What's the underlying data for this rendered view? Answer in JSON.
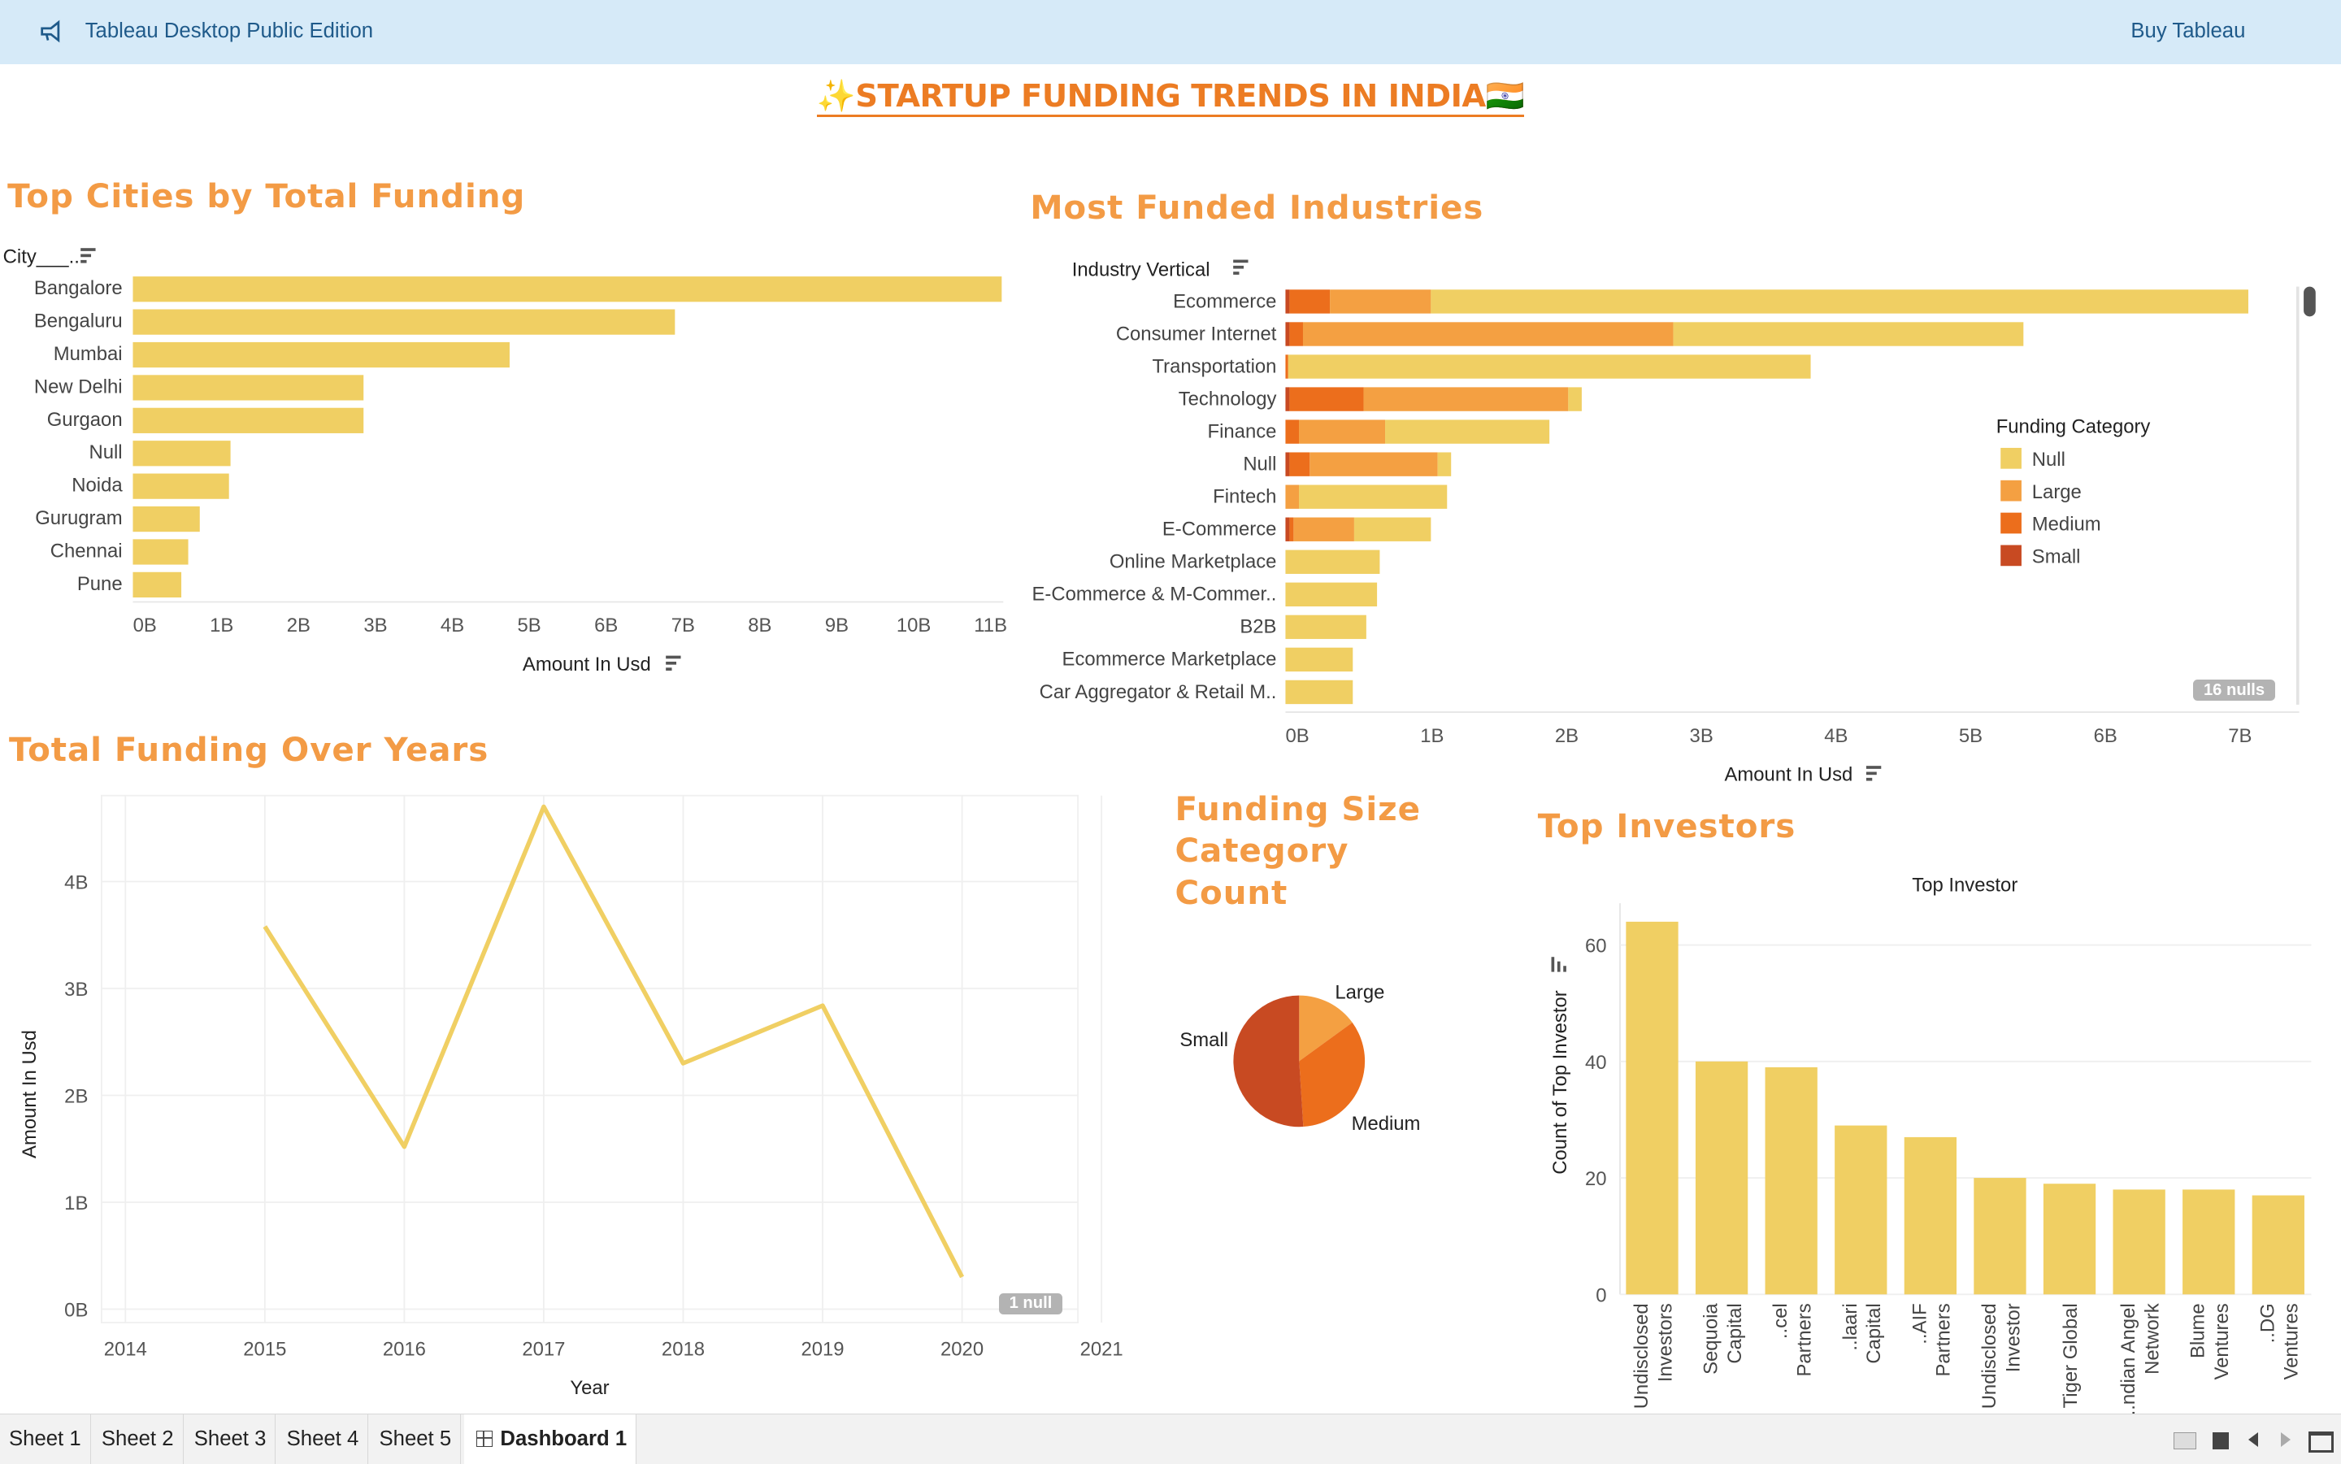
{
  "banner": {
    "product": "Tableau Desktop Public Edition",
    "buy_link": "Buy Tableau",
    "icon": "megaphone-icon"
  },
  "dashboard": {
    "title": "✨STARTUP FUNDING TRENDS IN INDIA🇮🇳",
    "accent_color": "#ec7c23",
    "title_color": "#f39b45",
    "bar_color": "#f0cf63"
  },
  "cities": {
    "title": "Top Cities by Total Funding",
    "field_header": "City___..",
    "x_axis_title": "Amount In Usd",
    "ticks": [
      "0B",
      "1B",
      "2B",
      "3B",
      "4B",
      "5B",
      "6B",
      "7B",
      "8B",
      "9B",
      "10B",
      "11B"
    ]
  },
  "industries": {
    "title": "Most Funded Industries",
    "field_header": "Industry Vertical",
    "x_axis_title": "Amount In Usd",
    "ticks": [
      "0B",
      "1B",
      "2B",
      "3B",
      "4B",
      "5B",
      "6B",
      "7B"
    ],
    "legend_title": "Funding Category",
    "legend": [
      {
        "label": "Null",
        "color": "#f0cf63"
      },
      {
        "label": "Large",
        "color": "#f4a042"
      },
      {
        "label": "Medium",
        "color": "#ec6e1c"
      },
      {
        "label": "Small",
        "color": "#c84a22"
      }
    ],
    "nulls_badge": "16 nulls"
  },
  "years": {
    "title": "Total Funding Over Years",
    "x_axis_title": "Year",
    "y_axis_title": "Amount In Usd",
    "x_ticks": [
      "2014",
      "2015",
      "2016",
      "2017",
      "2018",
      "2019",
      "2020",
      "2021"
    ],
    "y_ticks": [
      "0B",
      "1B",
      "2B",
      "3B",
      "4B"
    ],
    "null_badge": "1 null"
  },
  "pie": {
    "title_line1": "Funding Size",
    "title_line2": "Category",
    "title_line3": "Count",
    "labels": [
      "Large",
      "Medium",
      "Small"
    ]
  },
  "investors": {
    "title": "Top Investors",
    "chart_title": "Top Investor",
    "y_axis_title": "Count of Top Investor",
    "y_ticks": [
      "0",
      "20",
      "40",
      "60"
    ]
  },
  "tabs": [
    "Sheet 1",
    "Sheet 2",
    "Sheet 3",
    "Sheet 4",
    "Sheet 5",
    "Dashboard 1"
  ],
  "chart_data": [
    {
      "type": "bar",
      "title": "Top Cities by Total Funding",
      "orientation": "horizontal",
      "categories": [
        "Bangalore",
        "Bengaluru",
        "Mumbai",
        "New Delhi",
        "Gurgaon",
        "Null",
        "Noida",
        "Gurugram",
        "Chennai",
        "Pune"
      ],
      "values": [
        11.3,
        7.05,
        4.9,
        3.0,
        3.0,
        1.27,
        1.25,
        0.87,
        0.72,
        0.63
      ],
      "unit": "B",
      "xlabel": "Amount In Usd",
      "xlim": [
        0,
        11.6
      ]
    },
    {
      "type": "bar",
      "title": "Most Funded Industries",
      "orientation": "horizontal",
      "stacked": true,
      "categories": [
        "Ecommerce",
        "Consumer Internet",
        "Transportation",
        "Technology",
        "Finance",
        "Null",
        "Fintech",
        "E-Commerce",
        "Online Marketplace",
        "E-Commerce & M-Commer..",
        "B2B",
        "Ecommerce Marketplace",
        "Car Aggregator & Retail M.."
      ],
      "series": [
        {
          "name": "Small",
          "values": [
            0.03,
            0.03,
            0.0,
            0.03,
            0.0,
            0.03,
            0.0,
            0.03,
            0,
            0,
            0,
            0,
            0
          ]
        },
        {
          "name": "Medium",
          "values": [
            0.3,
            0.1,
            0.02,
            0.55,
            0.1,
            0.15,
            0.0,
            0.03,
            0,
            0,
            0,
            0,
            0
          ]
        },
        {
          "name": "Large",
          "values": [
            0.75,
            2.75,
            0.0,
            1.52,
            0.64,
            0.95,
            0.1,
            0.45,
            0,
            0,
            0,
            0,
            0
          ]
        },
        {
          "name": "Null",
          "values": [
            6.07,
            2.6,
            3.88,
            0.1,
            1.22,
            0.1,
            1.1,
            0.57,
            0.7,
            0.68,
            0.6,
            0.5,
            0.5
          ]
        }
      ],
      "unit": "B",
      "xlabel": "Amount In Usd",
      "xlim": [
        0,
        7.6
      ]
    },
    {
      "type": "line",
      "title": "Total Funding Over Years",
      "x": [
        2015,
        2016,
        2017,
        2018,
        2019,
        2020
      ],
      "y": [
        3.58,
        1.52,
        4.7,
        2.3,
        2.84,
        0.3
      ],
      "unit": "B",
      "xlabel": "Year",
      "ylabel": "Amount In Usd",
      "xlim": [
        2014,
        2021
      ],
      "ylim": [
        0,
        5
      ]
    },
    {
      "type": "pie",
      "title": "Funding Size Category Count",
      "categories": [
        "Large",
        "Medium",
        "Small"
      ],
      "values": [
        0.15,
        0.34,
        0.51
      ]
    },
    {
      "type": "bar",
      "title": "Top Investor",
      "categories": [
        "Undisclosed Investors",
        "Sequoia Capital",
        "..cel Partners",
        "..laari Capital",
        "..AIF Partners",
        "Undisclosed Investor",
        "Tiger Global",
        "..ndian Angel Network",
        "Blume Ventures",
        "..DG Ventures"
      ],
      "values": [
        64,
        40,
        39,
        29,
        27,
        20,
        19,
        18,
        18,
        17
      ],
      "ylabel": "Count of Top Investor",
      "ylim": [
        0,
        66
      ]
    }
  ]
}
